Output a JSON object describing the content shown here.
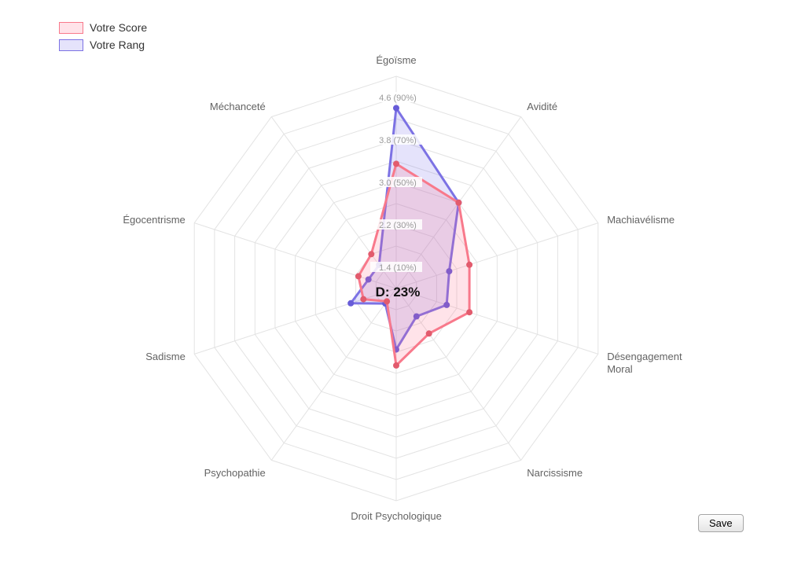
{
  "legend": {
    "items": [
      {
        "label": "Votre Score"
      },
      {
        "label": "Votre Rang"
      }
    ]
  },
  "save_button": {
    "label": "Save"
  },
  "chart_data": {
    "type": "radar",
    "categories": [
      "Égoïsme",
      "Avidité",
      "Machiavélisme",
      [
        "Désengagement",
        "Moral"
      ],
      "Narcissisme",
      "Droit Psychologique",
      "Psychopathie",
      "Sadisme",
      "Égocentrisme",
      "Méchanceté"
    ],
    "series": [
      {
        "name": "Votre Score",
        "values": [
          3.35,
          3.0,
          2.45,
          2.45,
          2.05,
          2.45,
          1.3,
          1.65,
          1.75,
          1.8
        ],
        "line_color": "#f8798b",
        "fill_color": "rgba(255,99,132,0.18)",
        "point_color": "#e25b6d"
      },
      {
        "name": "Votre Rang",
        "values": [
          4.4,
          3.0,
          2.05,
          2.0,
          1.65,
          2.15,
          1.35,
          1.9,
          1.55,
          1.55
        ],
        "line_color": "#7c72e4",
        "fill_color": "rgba(124,113,233,0.2)",
        "point_color": "#675cd8"
      }
    ],
    "scale": {
      "min": 1,
      "max": 5,
      "ring_step": 0.4,
      "ticks": [
        {
          "v": 1.4,
          "label": "1.4  (10%)"
        },
        {
          "v": 2.2,
          "label": "2.2  (30%)"
        },
        {
          "v": 3.0,
          "label": "3.0  (50%)"
        },
        {
          "v": 3.8,
          "label": "3.8  (70%)"
        },
        {
          "v": 4.6,
          "label": "4.6  (90%)"
        }
      ]
    },
    "center_annotation": "D: 23%",
    "grid": true,
    "legend_position": "top-left",
    "colors": {
      "grid": "#e3e3e3",
      "axis_label": "#636363",
      "tick_label": "#9a9a9a",
      "annotation": "#111111"
    }
  }
}
